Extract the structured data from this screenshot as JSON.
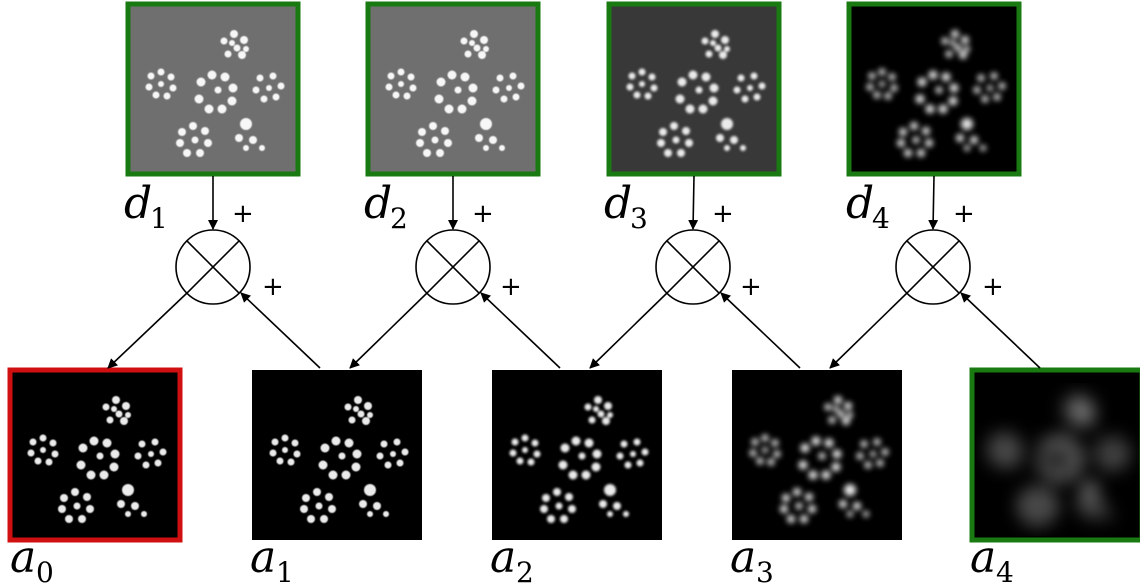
{
  "detail_layers": [
    {
      "symbol": "d",
      "index": "1"
    },
    {
      "symbol": "d",
      "index": "2"
    },
    {
      "symbol": "d",
      "index": "3"
    },
    {
      "symbol": "d",
      "index": "4"
    }
  ],
  "approximation_layers": [
    {
      "symbol": "a",
      "index": "0"
    },
    {
      "symbol": "a",
      "index": "1"
    },
    {
      "symbol": "a",
      "index": "2"
    },
    {
      "symbol": "a",
      "index": "3"
    },
    {
      "symbol": "a",
      "index": "4"
    }
  ],
  "operator": {
    "symbol": "⊗",
    "input_sign": "+"
  },
  "colors": {
    "input_frame": "#1a7a12",
    "output_frame": "#d01010",
    "detail_background": "#6f6f6f",
    "detail_background_dark": "#383838",
    "image_background": "#000000"
  }
}
